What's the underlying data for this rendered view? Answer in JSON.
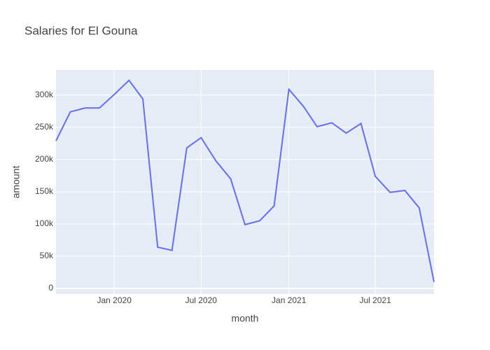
{
  "chart_data": {
    "type": "line",
    "title": "Salaries for El Gouna",
    "xlabel": "month",
    "ylabel": "amount",
    "x": [
      "2019-09",
      "2019-10",
      "2019-11",
      "2019-12",
      "2020-01",
      "2020-02",
      "2020-03",
      "2020-04",
      "2020-05",
      "2020-06",
      "2020-07",
      "2020-08",
      "2020-09",
      "2020-10",
      "2020-11",
      "2020-12",
      "2021-01",
      "2021-02",
      "2021-03",
      "2021-04",
      "2021-05",
      "2021-06",
      "2021-07",
      "2021-08",
      "2021-09",
      "2021-10",
      "2021-11"
    ],
    "series": [
      {
        "name": "amount",
        "color": "#636efa",
        "values": [
          229000,
          274000,
          280000,
          280000,
          301000,
          323000,
          294000,
          64000,
          59000,
          218000,
          234000,
          198000,
          170000,
          99000,
          105000,
          128000,
          309000,
          282000,
          251000,
          257000,
          241000,
          256000,
          174000,
          149000,
          152000,
          125000,
          10000
        ]
      }
    ],
    "xlim": [
      "2019-09",
      "2021-11"
    ],
    "xticks": [
      {
        "value": "2020-01",
        "label": "Jan 2020"
      },
      {
        "value": "2020-07",
        "label": "Jul 2020"
      },
      {
        "value": "2021-01",
        "label": "Jan 2021"
      },
      {
        "value": "2021-07",
        "label": "Jul 2021"
      }
    ],
    "ylim": [
      -8700,
      339000
    ],
    "yticks": [
      0,
      {
        "value": 50000,
        "label": "50k"
      },
      {
        "value": 100000,
        "label": "100k"
      },
      {
        "value": 150000,
        "label": "150k"
      },
      {
        "value": 200000,
        "label": "200k"
      },
      {
        "value": 250000,
        "label": "250k"
      },
      {
        "value": 300000,
        "label": "300k"
      }
    ],
    "grid": true
  }
}
